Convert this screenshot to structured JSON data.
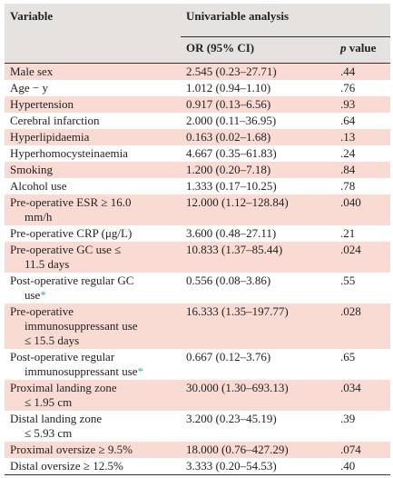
{
  "header": {
    "variable": "Variable",
    "group": "Univariable analysis",
    "or_ci": "OR (95% CI)",
    "p_italic": "p",
    "p_rest": " value"
  },
  "rows": [
    {
      "label": "Male sex",
      "cont": "",
      "star": "",
      "or": "2.545 (0.23–27.71)",
      "p": ".44",
      "shade": "pink"
    },
    {
      "label": "Age − y",
      "cont": "",
      "star": "",
      "or": "1.012 (0.94–1.10)",
      "p": ".76",
      "shade": "white"
    },
    {
      "label": "Hypertension",
      "cont": "",
      "star": "",
      "or": "0.917 (0.13–6.56)",
      "p": ".93",
      "shade": "pink"
    },
    {
      "label": "Cerebral infarction",
      "cont": "",
      "star": "",
      "or": "2.000 (0.11–36.95)",
      "p": ".64",
      "shade": "white"
    },
    {
      "label": "Hyperlipidaemia",
      "cont": "",
      "star": "",
      "or": "0.163 (0.02–1.68)",
      "p": ".13",
      "shade": "pink"
    },
    {
      "label": "Hyperhomocysteinaemia",
      "cont": "",
      "star": "",
      "or": "4.667 (0.35–61.83)",
      "p": ".24",
      "shade": "white"
    },
    {
      "label": "Smoking",
      "cont": "",
      "star": "",
      "or": "1.200 (0.20–7.18)",
      "p": ".84",
      "shade": "pink"
    },
    {
      "label": "Alcohol use",
      "cont": "",
      "star": "",
      "or": "1.333 (0.17–10.25)",
      "p": ".78",
      "shade": "white"
    },
    {
      "label": "Pre-operative ESR ≥ 16.0",
      "cont": "mm/h",
      "star": "",
      "or": "12.000 (1.12–128.84)",
      "p": ".040",
      "shade": "pink"
    },
    {
      "label": "Pre-operative CRP (μg/L)",
      "cont": "",
      "star": "",
      "or": "3.600 (0.48–27.11)",
      "p": ".21",
      "shade": "white"
    },
    {
      "label": "Pre-operative GC use ≤",
      "cont": "11.5 days",
      "star": "",
      "or": "10.833 (1.37–85.44)",
      "p": ".024",
      "shade": "pink"
    },
    {
      "label": "Post-operative regular GC",
      "cont": "use",
      "star": "*",
      "or": "0.556 (0.08–3.86)",
      "p": ".55",
      "shade": "white"
    },
    {
      "label": "Pre-operative",
      "cont": "immunosuppressant use",
      "cont2": "≤ 15.5 days",
      "star": "",
      "or": "16.333 (1.35–197.77)",
      "p": ".028",
      "shade": "pink"
    },
    {
      "label": "Post-operative regular",
      "cont": "immunosuppressant use",
      "star": "*",
      "or": "0.667 (0.12–3.76)",
      "p": ".65",
      "shade": "white"
    },
    {
      "label": "Proximal landing zone",
      "cont": "≤ 1.95 cm",
      "star": "",
      "or": "30.000 (1.30–693.13)",
      "p": ".034",
      "shade": "pink"
    },
    {
      "label": "Distal landing zone",
      "cont": "≤ 5.93 cm",
      "star": "",
      "or": "3.200 (0.23–45.19)",
      "p": ".39",
      "shade": "white"
    },
    {
      "label": "Proximal oversize ≥ 9.5%",
      "cont": "",
      "star": "",
      "or": "18.000 (0.76–427.29)",
      "p": ".074",
      "shade": "pink"
    },
    {
      "label": "Distal oversize ≥ 12.5%",
      "cont": "",
      "star": "",
      "or": "3.333 (0.20–54.53)",
      "p": ".40",
      "shade": "white"
    }
  ]
}
